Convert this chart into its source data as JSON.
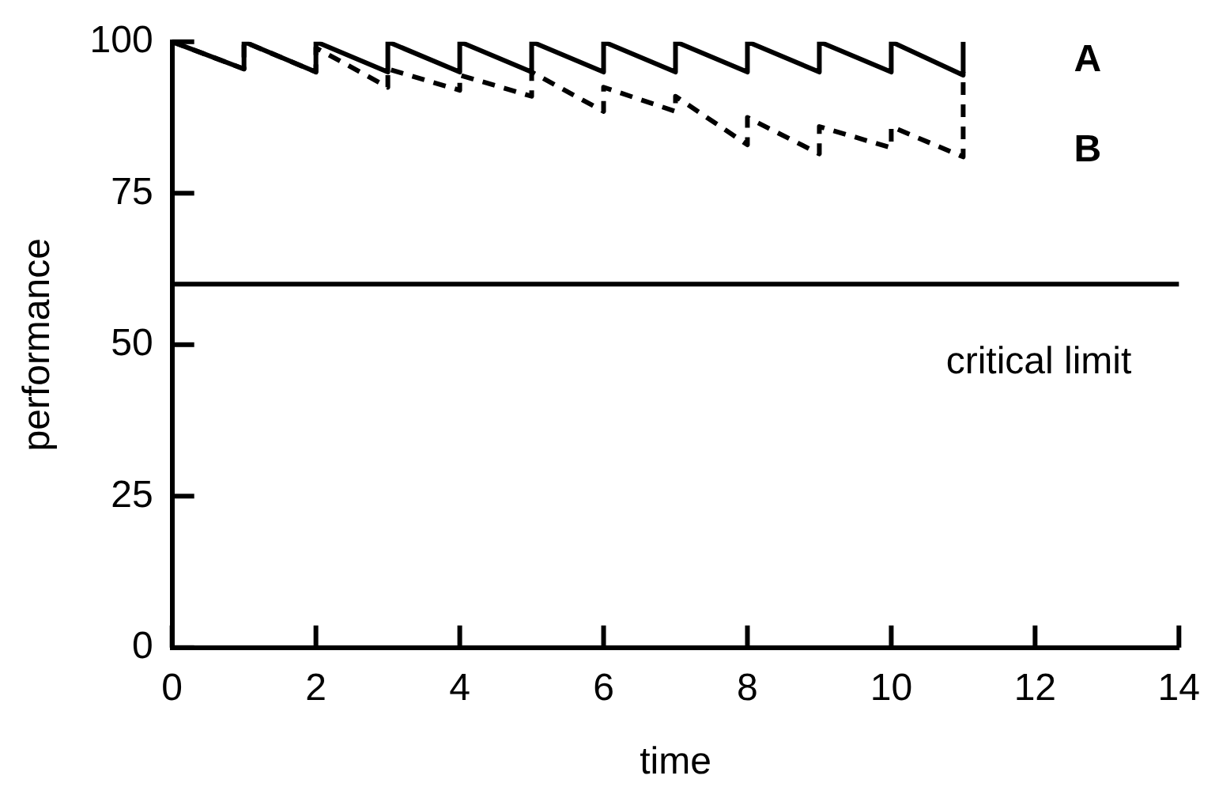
{
  "chart_data": {
    "type": "line",
    "xlabel": "time",
    "ylabel": "performance",
    "xlim": [
      0,
      14
    ],
    "xticks": [
      0,
      2,
      4,
      6,
      8,
      10,
      12,
      14
    ],
    "ylim": [
      0,
      100
    ],
    "yticks": [
      0,
      25,
      50,
      75,
      100
    ],
    "grid": false,
    "legend": false,
    "marker": "none",
    "series": [
      {
        "name": "A",
        "color": "#000000",
        "line_style": "solid",
        "x": [
          0,
          1,
          1,
          2,
          2,
          3,
          3,
          4,
          4,
          5,
          5,
          6,
          6,
          7,
          7,
          8,
          8,
          9,
          9,
          10,
          10,
          11,
          11
        ],
        "values": [
          100,
          95.5,
          100,
          95,
          100,
          95,
          100,
          95,
          100,
          95,
          100,
          95,
          100,
          95,
          100,
          95,
          100,
          95,
          100,
          95,
          100,
          94.5,
          100
        ]
      },
      {
        "name": "B",
        "color": "#000000",
        "line_style": "dashed",
        "x": [
          0,
          1,
          1,
          2,
          2,
          3,
          3,
          4,
          4,
          5,
          5,
          6,
          6,
          7,
          7,
          8,
          8,
          9,
          9,
          10,
          10,
          11,
          11
        ],
        "values": [
          100,
          95.5,
          100,
          95,
          99,
          92.5,
          95.5,
          92,
          94.5,
          91,
          95,
          88.5,
          92.5,
          88.5,
          91,
          83,
          87.5,
          81.5,
          86,
          82.5,
          86,
          81,
          95
        ]
      }
    ],
    "ref_lines": [
      {
        "axis": "y",
        "value": 60,
        "label": "critical limit",
        "color": "#000000",
        "line_style": "solid"
      }
    ]
  }
}
